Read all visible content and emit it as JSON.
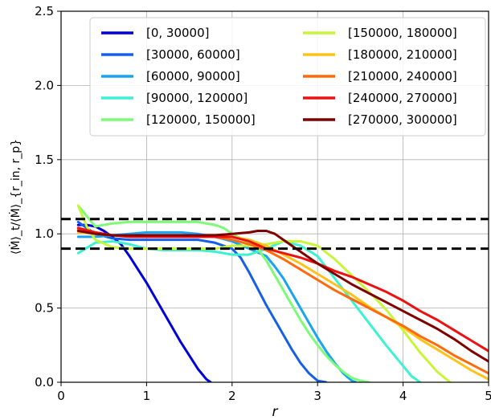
{
  "chart_data": {
    "type": "line",
    "xlabel": "r",
    "ylabel": "⟨Ṁ⟩_t/⟨Ṁ⟩_{r_in, r_p}",
    "xlim": [
      0,
      5
    ],
    "ylim": [
      0,
      2.5
    ],
    "xticks": [
      "0",
      "1",
      "2",
      "3",
      "4",
      "5"
    ],
    "yticks": [
      "0.0",
      "0.5",
      "1.0",
      "1.5",
      "2.0",
      "2.5"
    ],
    "grid": true,
    "legend": {
      "placement": "top",
      "columns": 2
    },
    "reference_lines": [
      {
        "y": 1.1,
        "style": "dashed",
        "color": "#000000"
      },
      {
        "y": 0.9,
        "style": "dashed",
        "color": "#000000"
      }
    ],
    "series": [
      {
        "name": "[0, 30000]",
        "color": "#0000d9",
        "x": [
          0.2,
          0.3,
          0.4,
          0.5,
          0.6,
          0.7,
          0.8,
          0.9,
          1.0,
          1.1,
          1.2,
          1.3,
          1.4,
          1.5,
          1.6,
          1.7,
          1.75
        ],
        "y": [
          1.06,
          1.06,
          1.05,
          1.02,
          0.98,
          0.93,
          0.85,
          0.76,
          0.67,
          0.57,
          0.47,
          0.37,
          0.27,
          0.18,
          0.09,
          0.02,
          0.0
        ]
      },
      {
        "name": "[30000, 60000]",
        "color": "#1560e8",
        "x": [
          0.2,
          0.4,
          0.6,
          0.8,
          1.0,
          1.2,
          1.4,
          1.6,
          1.8,
          2.0,
          2.1,
          2.2,
          2.3,
          2.4,
          2.5,
          2.6,
          2.7,
          2.8,
          2.9,
          3.0,
          3.1
        ],
        "y": [
          1.08,
          1.0,
          0.97,
          0.96,
          0.96,
          0.96,
          0.96,
          0.96,
          0.94,
          0.9,
          0.84,
          0.74,
          0.63,
          0.52,
          0.42,
          0.32,
          0.22,
          0.13,
          0.06,
          0.01,
          0.0
        ]
      },
      {
        "name": "[60000, 90000]",
        "color": "#18a4f2",
        "x": [
          0.2,
          0.4,
          0.6,
          0.8,
          1.0,
          1.2,
          1.4,
          1.6,
          1.8,
          2.0,
          2.2,
          2.4,
          2.5,
          2.6,
          2.7,
          2.8,
          2.9,
          3.0,
          3.1,
          3.2,
          3.3,
          3.4,
          3.45
        ],
        "y": [
          0.98,
          0.98,
          0.99,
          1.0,
          1.01,
          1.01,
          1.01,
          1.0,
          0.98,
          0.95,
          0.9,
          0.85,
          0.78,
          0.7,
          0.6,
          0.5,
          0.4,
          0.3,
          0.21,
          0.13,
          0.06,
          0.01,
          0.0
        ]
      },
      {
        "name": "[90000, 120000]",
        "color": "#3df2d0",
        "x": [
          0.2,
          0.4,
          0.6,
          0.8,
          1.0,
          1.2,
          1.4,
          1.6,
          1.8,
          2.0,
          2.2,
          2.4,
          2.6,
          2.8,
          3.0,
          3.2,
          3.4,
          3.6,
          3.8,
          4.0,
          4.1,
          4.2
        ],
        "y": [
          0.87,
          0.94,
          0.95,
          0.93,
          0.9,
          0.89,
          0.89,
          0.89,
          0.88,
          0.86,
          0.86,
          0.9,
          0.95,
          0.92,
          0.85,
          0.7,
          0.55,
          0.4,
          0.25,
          0.11,
          0.04,
          0.0
        ]
      },
      {
        "name": "[120000, 150000]",
        "color": "#7dfa78",
        "x": [
          0.2,
          0.3,
          0.4,
          0.6,
          0.8,
          1.0,
          1.2,
          1.4,
          1.6,
          1.8,
          1.9,
          2.0,
          2.1,
          2.2,
          2.3,
          2.4,
          2.5,
          2.6,
          2.7,
          2.8,
          2.9,
          3.0,
          3.1,
          3.2,
          3.3,
          3.4,
          3.5,
          3.6
        ],
        "y": [
          1.19,
          1.12,
          1.05,
          1.07,
          1.08,
          1.08,
          1.08,
          1.08,
          1.08,
          1.06,
          1.04,
          1.0,
          0.97,
          0.94,
          0.9,
          0.82,
          0.72,
          0.62,
          0.52,
          0.42,
          0.33,
          0.25,
          0.18,
          0.12,
          0.07,
          0.03,
          0.01,
          0.0
        ]
      },
      {
        "name": "[150000, 180000]",
        "color": "#c8f53a",
        "x": [
          0.2,
          0.3,
          0.4,
          0.6,
          0.8,
          1.0,
          1.2,
          1.4,
          1.6,
          1.8,
          2.0,
          2.2,
          2.4,
          2.6,
          2.8,
          3.0,
          3.2,
          3.4,
          3.6,
          3.8,
          4.0,
          4.2,
          4.4,
          4.55
        ],
        "y": [
          1.19,
          1.05,
          0.96,
          0.91,
          0.9,
          0.9,
          0.9,
          0.9,
          0.9,
          0.9,
          0.92,
          0.92,
          0.93,
          0.95,
          0.95,
          0.92,
          0.83,
          0.72,
          0.61,
          0.49,
          0.35,
          0.2,
          0.07,
          0.0
        ]
      },
      {
        "name": "[180000, 210000]",
        "color": "#ffc21a",
        "x": [
          0.2,
          0.4,
          0.6,
          0.8,
          1.0,
          1.2,
          1.4,
          1.6,
          1.8,
          2.0,
          2.2,
          2.4,
          2.6,
          2.8,
          3.0,
          3.2,
          3.4,
          3.6,
          3.8,
          4.0,
          4.2,
          4.4,
          4.6,
          4.8,
          5.0
        ],
        "y": [
          1.01,
          1.0,
          0.99,
          0.99,
          0.99,
          0.99,
          0.99,
          0.99,
          0.99,
          0.98,
          0.96,
          0.92,
          0.86,
          0.8,
          0.73,
          0.66,
          0.59,
          0.51,
          0.44,
          0.37,
          0.29,
          0.22,
          0.15,
          0.08,
          0.02
        ]
      },
      {
        "name": "[210000, 240000]",
        "color": "#ff6a0a",
        "x": [
          0.2,
          0.4,
          0.6,
          0.8,
          1.0,
          1.2,
          1.4,
          1.6,
          1.8,
          2.0,
          2.2,
          2.4,
          2.6,
          2.8,
          3.0,
          3.2,
          3.4,
          3.6,
          3.8,
          4.0,
          4.2,
          4.4,
          4.6,
          4.8,
          5.0
        ],
        "y": [
          1.03,
          1.01,
          0.99,
          0.99,
          0.99,
          0.99,
          0.99,
          0.99,
          0.98,
          0.96,
          0.93,
          0.89,
          0.83,
          0.76,
          0.69,
          0.62,
          0.56,
          0.5,
          0.44,
          0.38,
          0.31,
          0.25,
          0.18,
          0.12,
          0.06
        ]
      },
      {
        "name": "[240000, 270000]",
        "color": "#ee1111",
        "x": [
          0.2,
          0.4,
          0.6,
          0.8,
          1.0,
          1.2,
          1.4,
          1.6,
          1.8,
          2.0,
          2.2,
          2.4,
          2.6,
          2.8,
          3.0,
          3.2,
          3.4,
          3.6,
          3.8,
          4.0,
          4.2,
          4.4,
          4.6,
          4.8,
          5.0
        ],
        "y": [
          1.04,
          1.01,
          0.99,
          0.98,
          0.98,
          0.98,
          0.98,
          0.98,
          0.98,
          0.98,
          0.95,
          0.9,
          0.87,
          0.84,
          0.8,
          0.75,
          0.71,
          0.66,
          0.61,
          0.55,
          0.48,
          0.42,
          0.35,
          0.28,
          0.21
        ]
      },
      {
        "name": "[270000, 300000]",
        "color": "#7f0000",
        "x": [
          0.2,
          0.4,
          0.6,
          0.8,
          1.0,
          1.2,
          1.4,
          1.6,
          1.8,
          2.0,
          2.2,
          2.3,
          2.4,
          2.5,
          2.6,
          2.8,
          3.0,
          3.2,
          3.4,
          3.6,
          3.8,
          4.0,
          4.2,
          4.4,
          4.6,
          4.8,
          5.0
        ],
        "y": [
          1.02,
          1.0,
          0.99,
          0.99,
          0.99,
          0.99,
          0.99,
          0.99,
          0.99,
          1.0,
          1.01,
          1.02,
          1.02,
          1.0,
          0.96,
          0.88,
          0.8,
          0.73,
          0.66,
          0.6,
          0.54,
          0.48,
          0.42,
          0.36,
          0.29,
          0.21,
          0.14
        ]
      }
    ]
  }
}
